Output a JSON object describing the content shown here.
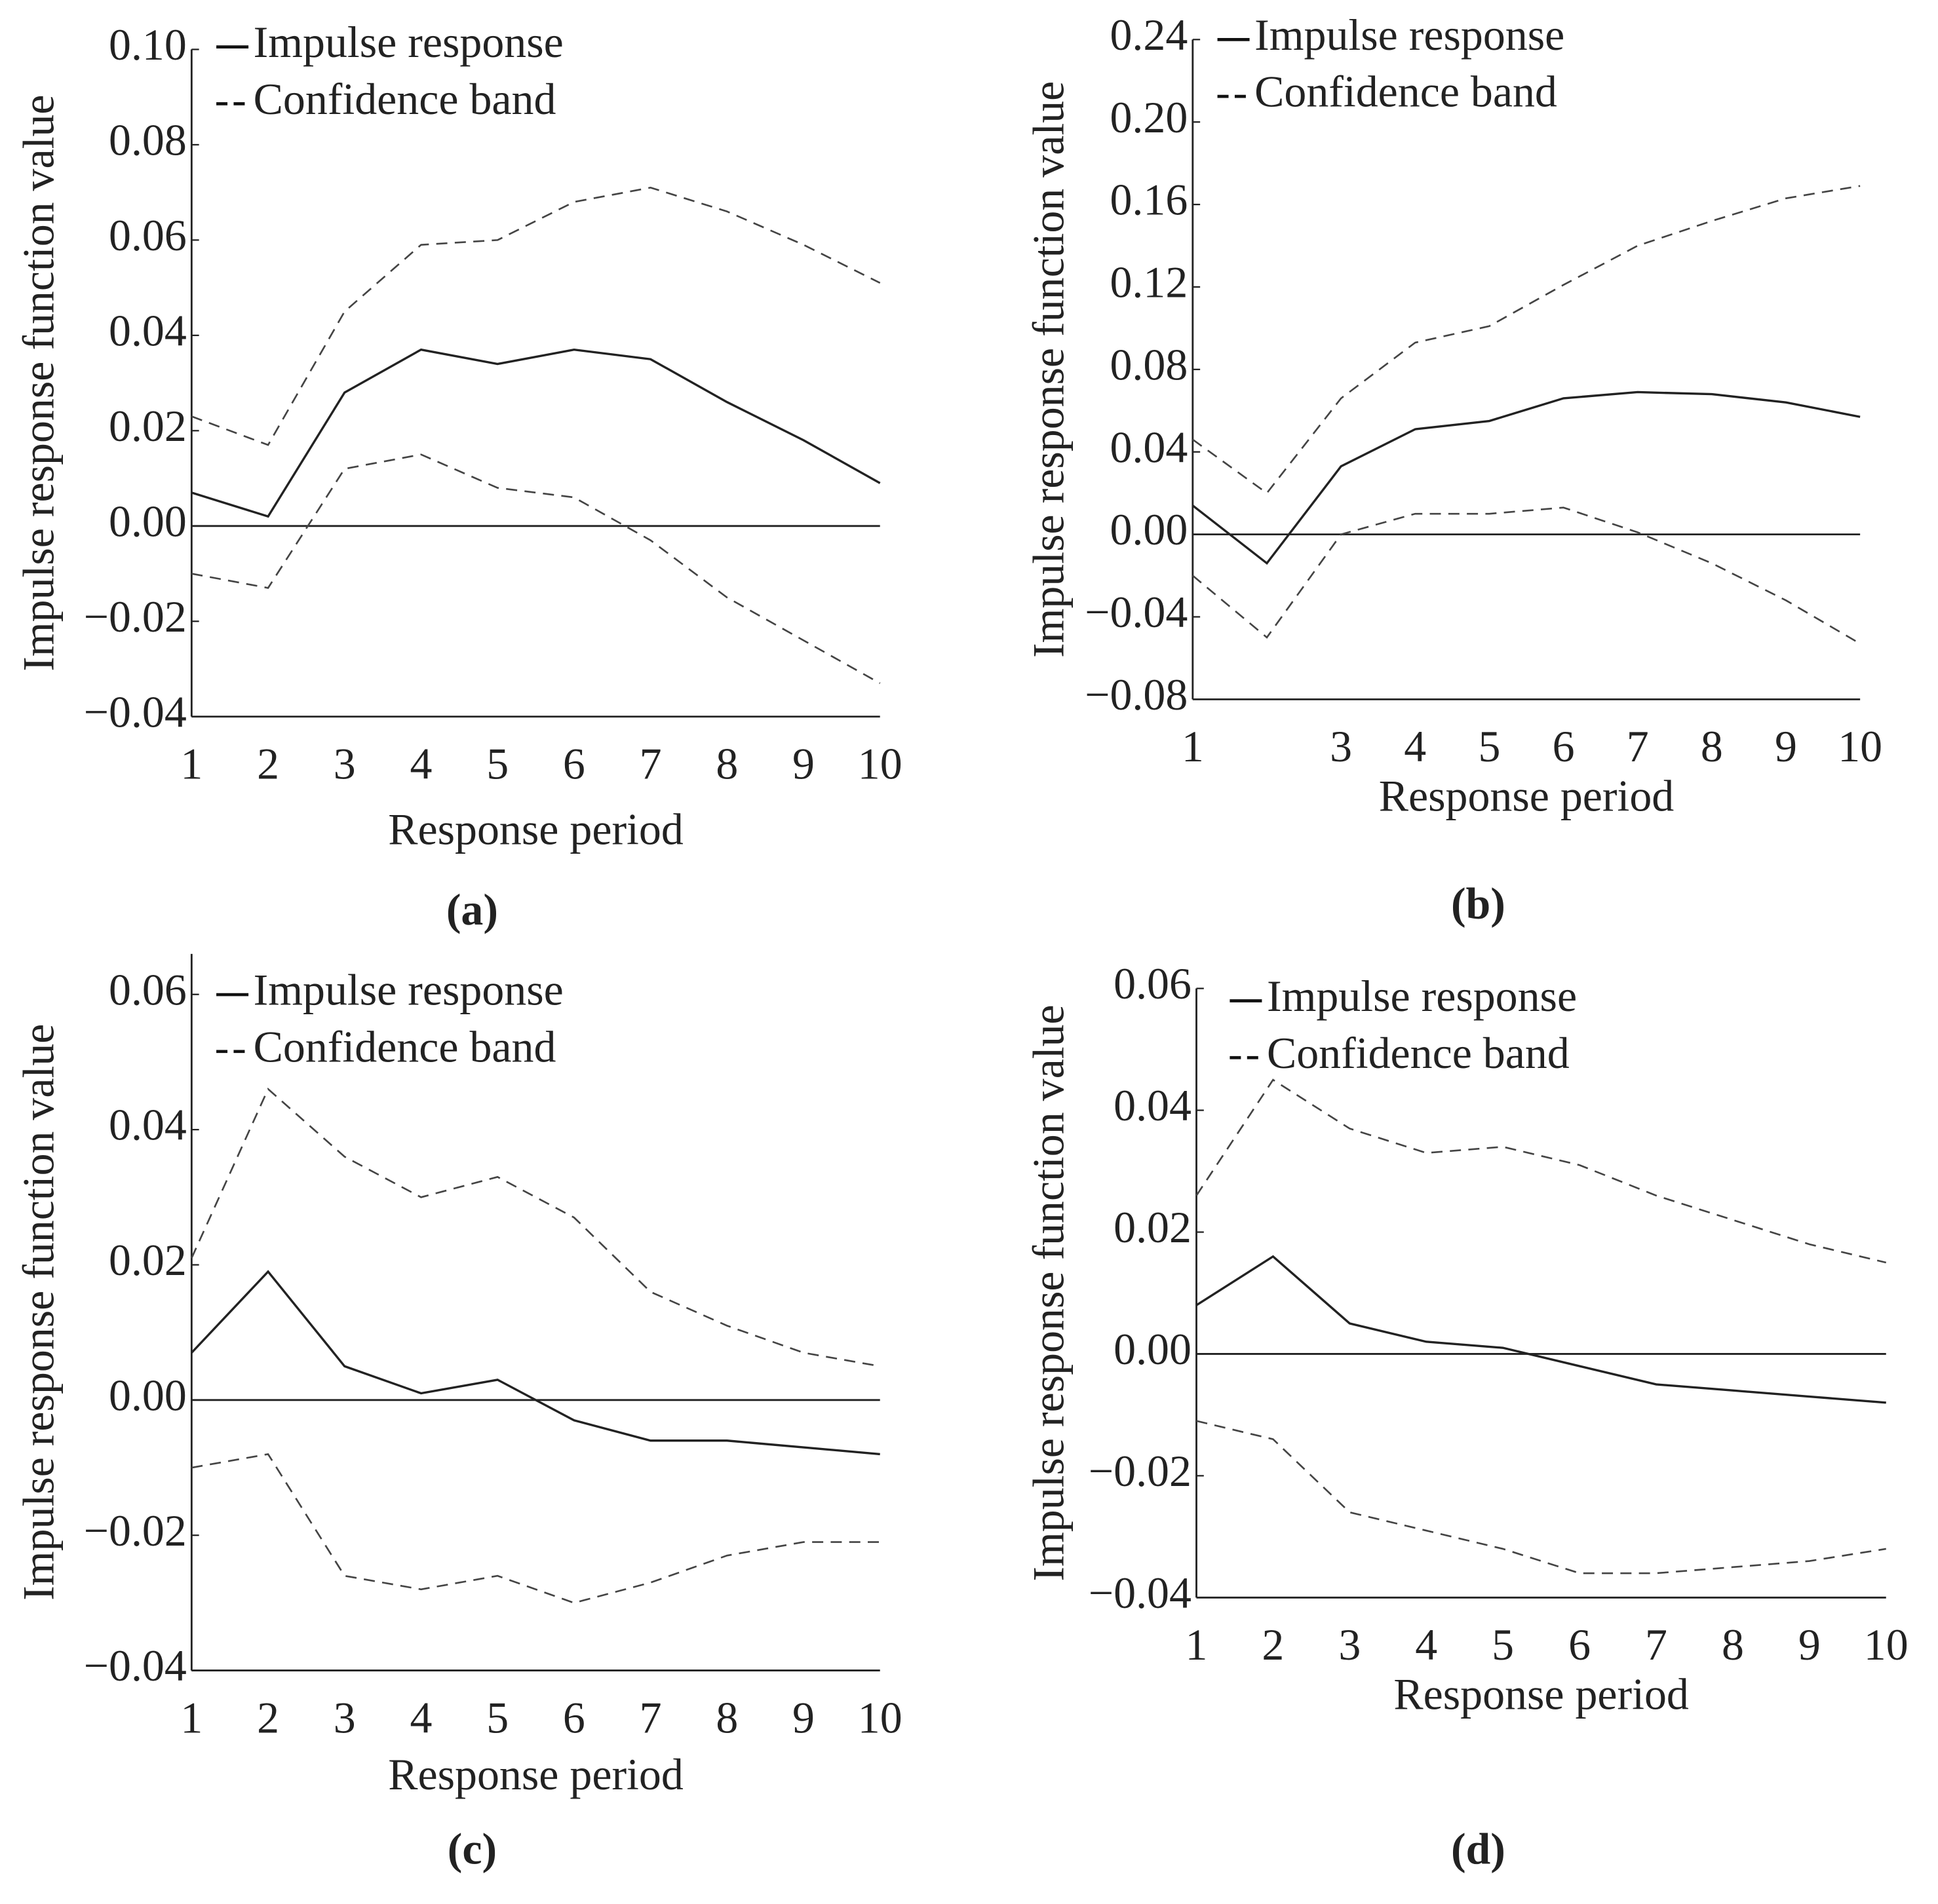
{
  "chart_data": [
    {
      "type": "line",
      "label": "(a)",
      "xlabel": "Response period",
      "ylabel": "Impulse response function value",
      "x": [
        1,
        2,
        3,
        4,
        5,
        6,
        7,
        8,
        9,
        10
      ],
      "xlim": [
        1,
        10
      ],
      "xticks": [
        1,
        2,
        3,
        4,
        5,
        6,
        7,
        8,
        9,
        10
      ],
      "ylim": [
        -0.04,
        0.1
      ],
      "yticks": [
        {
          "value": -0.04,
          "label": "−0.04"
        },
        {
          "value": -0.02,
          "label": "−0.02"
        },
        {
          "value": 0,
          "label": "0.00"
        },
        0.02,
        0.04,
        0.06,
        0.08,
        {
          "value": 0.1,
          "label": "0.10"
        }
      ],
      "reference_line": 0,
      "series": [
        {
          "name": "Impulse response",
          "color": "#222",
          "style": "solid",
          "values": [
            0.007,
            0.002,
            0.028,
            0.037,
            0.034,
            0.037,
            0.035,
            0.026,
            0.018,
            0.009
          ]
        },
        {
          "name": "Confidence band",
          "color": "#444",
          "style": "dashed",
          "upper": [
            0.023,
            0.017,
            0.045,
            0.059,
            0.06,
            0.068,
            0.071,
            0.066,
            0.059,
            0.051
          ],
          "lower": [
            -0.01,
            -0.013,
            0.012,
            0.015,
            0.008,
            0.006,
            -0.003,
            -0.015,
            -0.024,
            -0.033
          ]
        }
      ]
    },
    {
      "type": "line",
      "label": "(b)",
      "xlabel": "Response period",
      "ylabel": "Impulse response function value",
      "x": [
        1,
        2,
        3,
        4,
        5,
        6,
        7,
        8,
        9,
        10
      ],
      "xlim": [
        1,
        10
      ],
      "xticks": [
        1,
        3,
        4,
        5,
        6,
        7,
        8,
        9,
        10
      ],
      "ylim": [
        -0.08,
        0.24
      ],
      "yticks": [
        {
          "value": -0.08,
          "label": "−0.08"
        },
        {
          "value": -0.04,
          "label": "−0.04"
        },
        {
          "value": 0,
          "label": "0.00"
        },
        0.04,
        0.08,
        0.12,
        0.16,
        {
          "value": 0.2,
          "label": "0.20"
        },
        0.24
      ],
      "reference_line": 0,
      "series": [
        {
          "name": "Impulse response",
          "color": "#222",
          "style": "solid",
          "values": [
            0.014,
            -0.014,
            0.033,
            0.051,
            0.055,
            0.066,
            0.069,
            0.068,
            0.064,
            0.057
          ]
        },
        {
          "name": "Confidence band",
          "color": "#444",
          "style": "dashed",
          "upper": [
            0.046,
            0.02,
            0.066,
            0.093,
            0.101,
            0.121,
            0.14,
            0.152,
            0.163,
            0.169
          ],
          "lower": [
            -0.02,
            -0.05,
            0.0,
            0.01,
            0.01,
            0.013,
            0.001,
            -0.014,
            -0.032,
            -0.053
          ]
        }
      ]
    },
    {
      "type": "line",
      "label": "(c)",
      "xlabel": "Response period",
      "ylabel": "Impulse response function value",
      "x": [
        1,
        2,
        3,
        4,
        5,
        6,
        7,
        8,
        9,
        10
      ],
      "xlim": [
        1,
        10
      ],
      "xticks": [
        1,
        2,
        3,
        4,
        5,
        6,
        7,
        8,
        9,
        10
      ],
      "ylim": [
        -0.04,
        0.066
      ],
      "yticks": [
        {
          "value": -0.04,
          "label": "−0.04"
        },
        {
          "value": -0.02,
          "label": "−0.02"
        },
        {
          "value": 0,
          "label": "0.00"
        },
        0.02,
        0.04,
        0.06
      ],
      "reference_line": 0,
      "series": [
        {
          "name": "Impulse response",
          "color": "#222",
          "style": "solid",
          "values": [
            0.007,
            0.019,
            0.005,
            0.001,
            0.003,
            -0.003,
            -0.006,
            -0.006,
            -0.007,
            -0.008
          ]
        },
        {
          "name": "Confidence band",
          "color": "#444",
          "style": "dashed",
          "upper": [
            0.021,
            0.046,
            0.036,
            0.03,
            0.033,
            0.027,
            0.016,
            0.011,
            0.007,
            0.005
          ],
          "lower": [
            -0.01,
            -0.008,
            -0.026,
            -0.028,
            -0.026,
            -0.03,
            -0.027,
            -0.023,
            -0.021,
            -0.021
          ]
        }
      ]
    },
    {
      "type": "line",
      "label": "(d)",
      "xlabel": "Response period",
      "ylabel": "Impulse response function value",
      "x": [
        1,
        2,
        3,
        4,
        5,
        6,
        7,
        8,
        9,
        10
      ],
      "xlim": [
        1,
        10
      ],
      "xticks": [
        1,
        2,
        3,
        4,
        5,
        6,
        7,
        8,
        9,
        10
      ],
      "ylim": [
        -0.04,
        0.06
      ],
      "yticks": [
        {
          "value": -0.04,
          "label": "−0.04"
        },
        {
          "value": -0.02,
          "label": "−0.02"
        },
        {
          "value": 0,
          "label": "0.00"
        },
        0.02,
        0.04,
        0.06
      ],
      "reference_line": 0,
      "series": [
        {
          "name": "Impulse response",
          "color": "#222",
          "style": "solid",
          "values": [
            0.008,
            0.016,
            0.005,
            0.002,
            0.001,
            -0.002,
            -0.005,
            -0.006,
            -0.007,
            -0.008
          ]
        },
        {
          "name": "Confidence band",
          "color": "#444",
          "style": "dashed",
          "upper": [
            0.026,
            0.045,
            0.037,
            0.033,
            0.034,
            0.031,
            0.026,
            0.022,
            0.018,
            0.015
          ],
          "lower": [
            -0.011,
            -0.014,
            -0.026,
            -0.029,
            -0.032,
            -0.036,
            -0.036,
            -0.035,
            -0.034,
            -0.032
          ]
        }
      ]
    }
  ]
}
